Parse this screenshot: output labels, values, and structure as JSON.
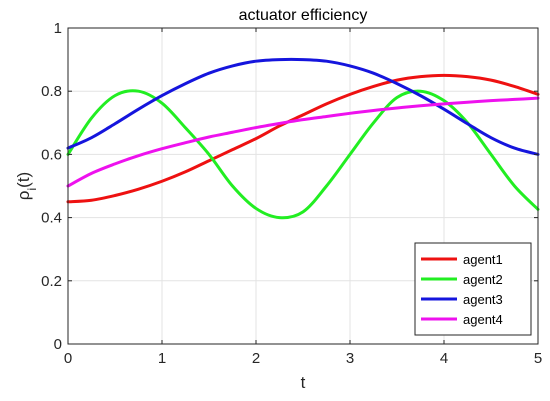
{
  "chart_data": {
    "type": "line",
    "title": "actuator efficiency",
    "xlabel": "t",
    "ylabel_main": "ρ",
    "ylabel_sub": "i",
    "ylabel_tail": "(t)",
    "xlim": [
      0,
      5
    ],
    "ylim": [
      0,
      1
    ],
    "x_ticks": [
      "0",
      "1",
      "2",
      "3",
      "4",
      "5"
    ],
    "y_ticks": [
      "0",
      "0.2",
      "0.4",
      "0.6",
      "0.8",
      "1"
    ],
    "grid": true,
    "legend_position": "bottom-right",
    "x": [
      0,
      0.25,
      0.5,
      0.75,
      1,
      1.25,
      1.5,
      1.75,
      2,
      2.25,
      2.5,
      2.75,
      3,
      3.25,
      3.5,
      3.75,
      4,
      4.25,
      4.5,
      4.75,
      5
    ],
    "series": [
      {
        "name": "agent1",
        "color": "#ee1111",
        "values": [
          0.45,
          0.455,
          0.47,
          0.49,
          0.515,
          0.545,
          0.58,
          0.615,
          0.65,
          0.69,
          0.725,
          0.76,
          0.79,
          0.815,
          0.835,
          0.846,
          0.85,
          0.846,
          0.835,
          0.815,
          0.79
        ]
      },
      {
        "name": "agent2",
        "color": "#22ee22",
        "values": [
          0.6,
          0.715,
          0.786,
          0.8,
          0.762,
          0.684,
          0.6,
          0.5,
          0.429,
          0.4,
          0.418,
          0.5,
          0.6,
          0.7,
          0.78,
          0.8,
          0.77,
          0.7,
          0.6,
          0.5,
          0.426
        ]
      },
      {
        "name": "agent3",
        "color": "#1515dd",
        "values": [
          0.62,
          0.653,
          0.697,
          0.743,
          0.786,
          0.824,
          0.857,
          0.88,
          0.895,
          0.9,
          0.9,
          0.895,
          0.88,
          0.857,
          0.824,
          0.786,
          0.743,
          0.697,
          0.653,
          0.62,
          0.6
        ]
      },
      {
        "name": "agent4",
        "color": "#ee11ee",
        "values": [
          0.5,
          0.54,
          0.57,
          0.596,
          0.618,
          0.637,
          0.655,
          0.67,
          0.685,
          0.698,
          0.71,
          0.72,
          0.73,
          0.739,
          0.747,
          0.754,
          0.76,
          0.765,
          0.77,
          0.774,
          0.778
        ]
      }
    ]
  }
}
